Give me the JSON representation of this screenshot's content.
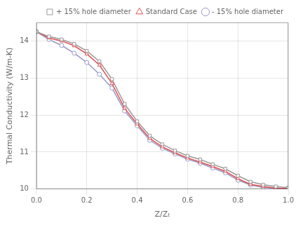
{
  "chart_data": {
    "type": "line",
    "title": "",
    "xlabel": "Z/Zₜ",
    "ylabel": "Thermal Conductivity (W/m-K)",
    "x": [
      0.0,
      0.05,
      0.1,
      0.15,
      0.2,
      0.25,
      0.3,
      0.35,
      0.4,
      0.45,
      0.5,
      0.55,
      0.6,
      0.65,
      0.7,
      0.75,
      0.8,
      0.85,
      0.9,
      0.95,
      1.0
    ],
    "series": [
      {
        "name": "+ 15% hole diameter",
        "color": "#999999",
        "marker": "square",
        "values": [
          14.25,
          14.12,
          14.04,
          13.92,
          13.73,
          13.45,
          12.97,
          12.3,
          11.83,
          11.44,
          11.21,
          11.04,
          10.9,
          10.8,
          10.67,
          10.55,
          10.36,
          10.2,
          10.12,
          10.07,
          10.04
        ]
      },
      {
        "name": "Standard Case",
        "color": "#e05050",
        "marker": "triangle",
        "values": [
          14.25,
          14.08,
          14.0,
          13.87,
          13.65,
          13.35,
          12.85,
          12.18,
          11.76,
          11.37,
          11.14,
          10.98,
          10.84,
          10.73,
          10.61,
          10.48,
          10.28,
          10.13,
          10.07,
          10.03,
          10.01
        ]
      },
      {
        "name": "- 15% hole diameter",
        "color": "#9999cc",
        "marker": "circle",
        "values": [
          14.25,
          14.04,
          13.88,
          13.67,
          13.42,
          13.1,
          12.73,
          12.11,
          11.71,
          11.32,
          11.1,
          10.95,
          10.81,
          10.7,
          10.57,
          10.44,
          10.24,
          10.11,
          10.05,
          10.02,
          10.02
        ]
      }
    ],
    "xlim": [
      0.0,
      1.0
    ],
    "ylim": [
      10.0,
      14.5
    ],
    "xticks": [
      {
        "value": 0.0,
        "label": "0.0"
      },
      0.2,
      0.4,
      0.6,
      0.8,
      {
        "value": 1.0,
        "label": "1.0"
      }
    ],
    "yticks": [
      10,
      11,
      12,
      13,
      14
    ],
    "grid": true,
    "legend": "upper right"
  }
}
